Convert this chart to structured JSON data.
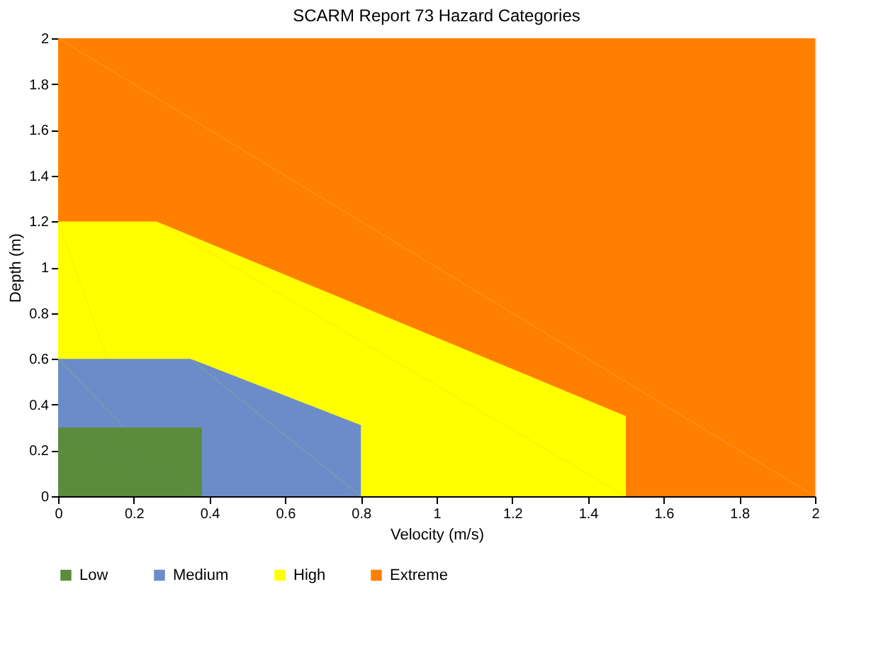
{
  "chart_data": {
    "type": "area",
    "title": "SCARM Report 73 Hazard Categories",
    "xlabel": "Velocity (m/s)",
    "ylabel": "Depth (m)",
    "xlim": [
      0,
      2
    ],
    "ylim": [
      0,
      2
    ],
    "xticks": [
      0,
      0.2,
      0.4,
      0.6,
      0.8,
      1,
      1.2,
      1.4,
      1.6,
      1.8,
      2
    ],
    "yticks": [
      0,
      0.2,
      0.4,
      0.6,
      0.8,
      1,
      1.2,
      1.4,
      1.6,
      1.8,
      2
    ],
    "legend": "bottom",
    "series": [
      {
        "name": "Low",
        "color": "#5b8c3c",
        "x": [
          0,
          0.38,
          0.38
        ],
        "values": [
          0.3,
          0.3,
          0
        ]
      },
      {
        "name": "Medium",
        "color": "#6b8cc8",
        "x": [
          0,
          0.35,
          0.8,
          0.8
        ],
        "values": [
          0.6,
          0.6,
          0.31,
          0
        ]
      },
      {
        "name": "High",
        "color": "#ffff00",
        "x": [
          0,
          0.26,
          1.5,
          1.5
        ],
        "values": [
          1.2,
          1.2,
          0.35,
          0
        ]
      },
      {
        "name": "Extreme",
        "color": "#ff8000",
        "x": [
          0,
          2
        ],
        "values": [
          2,
          2
        ]
      }
    ]
  }
}
